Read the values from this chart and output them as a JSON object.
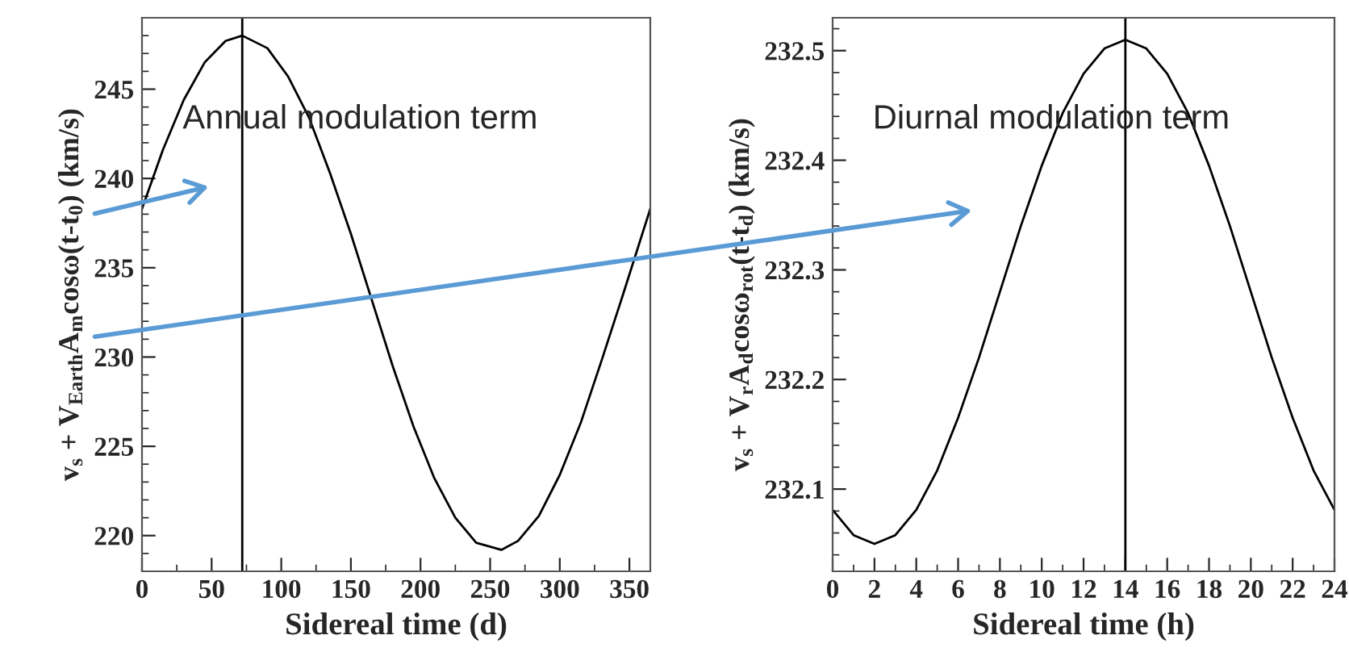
{
  "chart_data": [
    {
      "type": "line",
      "xlabel": "Sidereal time (d)",
      "ylabel": "v$_{s}$ + V$_{Earth}$A$_{m}$cosω(t-t$_{0}$) (km/s)",
      "annotations": [
        "Annual modulation term"
      ],
      "x": [
        0,
        15,
        30,
        45,
        60,
        72,
        90,
        105,
        120,
        135,
        150,
        165,
        180,
        195,
        210,
        225,
        240,
        258,
        270,
        285,
        300,
        315,
        330,
        345,
        365
      ],
      "series": [
        {
          "color": "#000000",
          "values": [
            238.3,
            241.6,
            244.4,
            246.5,
            247.7,
            248.0,
            247.3,
            245.7,
            243.4,
            240.3,
            236.9,
            233.2,
            229.5,
            226.1,
            223.2,
            221.0,
            219.6,
            219.2,
            219.7,
            221.1,
            223.4,
            226.3,
            229.8,
            233.4,
            238.3
          ]
        }
      ],
      "ref_lines": [
        {
          "axis": "x",
          "value": 72,
          "color": "#000000"
        }
      ],
      "xlim": [
        0,
        365
      ],
      "ylim": [
        218,
        249
      ],
      "xticks": [
        0,
        50,
        100,
        150,
        200,
        250,
        300,
        350
      ],
      "yticks": [
        220,
        225,
        230,
        235,
        240,
        245
      ]
    },
    {
      "type": "line",
      "xlabel": "Sidereal time (h)",
      "ylabel": "v$_{s}$ + V$_{r}$A$_{d}$cosω$_{rot}$(t-t$_{d}$) (km/s)",
      "annotations": [
        "Diurnal modulation term"
      ],
      "x": [
        0,
        1,
        2,
        3,
        4,
        5,
        6,
        7,
        8,
        9,
        10,
        11,
        12,
        13,
        14,
        15,
        16,
        17,
        18,
        19,
        20,
        21,
        22,
        23,
        24
      ],
      "series": [
        {
          "color": "#000000",
          "values": [
            232.081,
            232.058,
            232.05,
            232.058,
            232.081,
            232.117,
            232.165,
            232.22,
            232.28,
            232.34,
            232.395,
            232.443,
            232.479,
            232.502,
            232.51,
            232.502,
            232.479,
            232.443,
            232.395,
            232.34,
            232.28,
            232.22,
            232.165,
            232.117,
            232.081
          ]
        }
      ],
      "ref_lines": [
        {
          "axis": "x",
          "value": 14,
          "color": "#000000"
        }
      ],
      "xlim": [
        0,
        24
      ],
      "ylim": [
        232.025,
        232.53
      ],
      "xticks": [
        0,
        2,
        4,
        6,
        8,
        10,
        12,
        14,
        16,
        18,
        20,
        22,
        24
      ],
      "yticks": [
        232.1,
        232.2,
        232.3,
        232.4,
        232.5
      ]
    }
  ]
}
